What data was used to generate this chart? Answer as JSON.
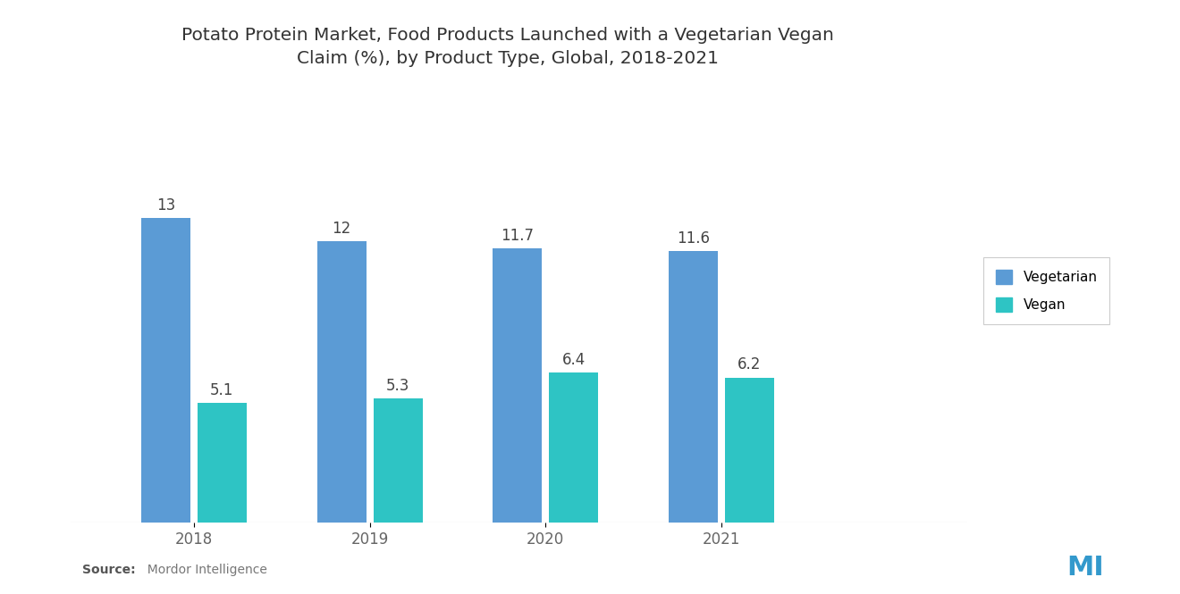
{
  "title": "Potato Protein Market, Food Products Launched with a Vegetarian Vegan\nClaim (%), by Product Type, Global, 2018-2021",
  "years": [
    2018,
    2019,
    2020,
    2021
  ],
  "vegetarian": [
    13,
    12,
    11.7,
    11.6
  ],
  "vegan": [
    5.1,
    5.3,
    6.4,
    6.2
  ],
  "vegetarian_color": "#5B9BD5",
  "vegan_color": "#2EC4C4",
  "background_color": "#FFFFFF",
  "bar_width": 0.28,
  "ylim": [
    0,
    18
  ],
  "source_label": "Source:",
  "source_rest": "  Mordor Intelligence",
  "legend_labels": [
    "Vegetarian",
    "Vegan"
  ],
  "title_fontsize": 14.5,
  "tick_fontsize": 12,
  "value_fontsize": 12,
  "legend_fontsize": 11
}
